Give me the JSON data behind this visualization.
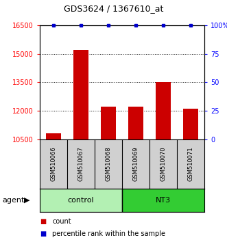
{
  "title": "GDS3624 / 1367610_at",
  "samples": [
    "GSM510066",
    "GSM510067",
    "GSM510068",
    "GSM510069",
    "GSM510070",
    "GSM510071"
  ],
  "counts": [
    10800,
    15200,
    12200,
    12200,
    13500,
    12100
  ],
  "percentile_ranks": [
    100,
    100,
    100,
    100,
    100,
    100
  ],
  "ylim_left": [
    10500,
    16500
  ],
  "ylim_right": [
    0,
    100
  ],
  "yticks_left": [
    10500,
    12000,
    13500,
    15000,
    16500
  ],
  "yticks_right": [
    0,
    25,
    50,
    75,
    100
  ],
  "ytick_labels_right": [
    "0",
    "25",
    "50",
    "75",
    "100%"
  ],
  "bar_color": "#cc0000",
  "dot_color": "#0000cc",
  "groups": [
    {
      "label": "control",
      "indices": [
        0,
        1,
        2
      ],
      "color": "#b3f0b3"
    },
    {
      "label": "NT3",
      "indices": [
        3,
        4,
        5
      ],
      "color": "#33cc33"
    }
  ],
  "agent_label": "agent",
  "legend_count_color": "#cc0000",
  "legend_pct_color": "#0000cc",
  "background_color": "#ffffff",
  "sample_box_color": "#d0d0d0",
  "bar_width": 0.55
}
